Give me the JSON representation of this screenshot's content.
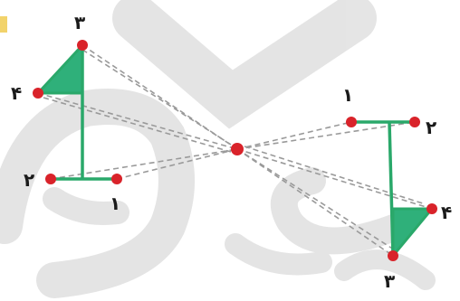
{
  "diagram": {
    "colors": {
      "figure_line": "#2aa86a",
      "figure_fill": "#2fb07a",
      "point": "#d9232a",
      "dashed": "#9a9a9a",
      "watermark": "#c9c9c9",
      "corner_mark": "#f2d36b"
    },
    "left_figure": {
      "labels": {
        "p1": "۱",
        "p2": "۲",
        "p3": "۳",
        "p4": "۴"
      }
    },
    "right_figure": {
      "labels": {
        "p1": "۱",
        "p2": "۲",
        "p3": "۳",
        "p4": "۴"
      }
    }
  }
}
